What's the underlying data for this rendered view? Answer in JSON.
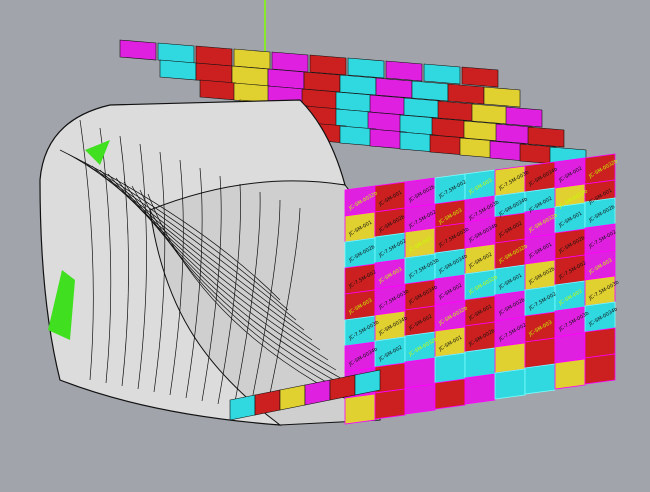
{
  "viewport": {
    "background": "#a1a5ab",
    "model_colors": {
      "surface": "#d9d9d9",
      "edges": "#111111",
      "magenta": "#e020e0",
      "cyan": "#30d8e0",
      "red": "#cc1f1f",
      "yellow": "#e0d030",
      "green_edge": "#40e020",
      "axis": "#80ff00"
    },
    "panel_labels": [
      "JC-SM-0032b",
      "JC-SM-001",
      "JC-SM-002b",
      "JC-7.5M-002",
      "JC-SM-003",
      "JC-7.5M-003b",
      "JC-SM-0034b",
      "JC-SM-002"
    ]
  }
}
